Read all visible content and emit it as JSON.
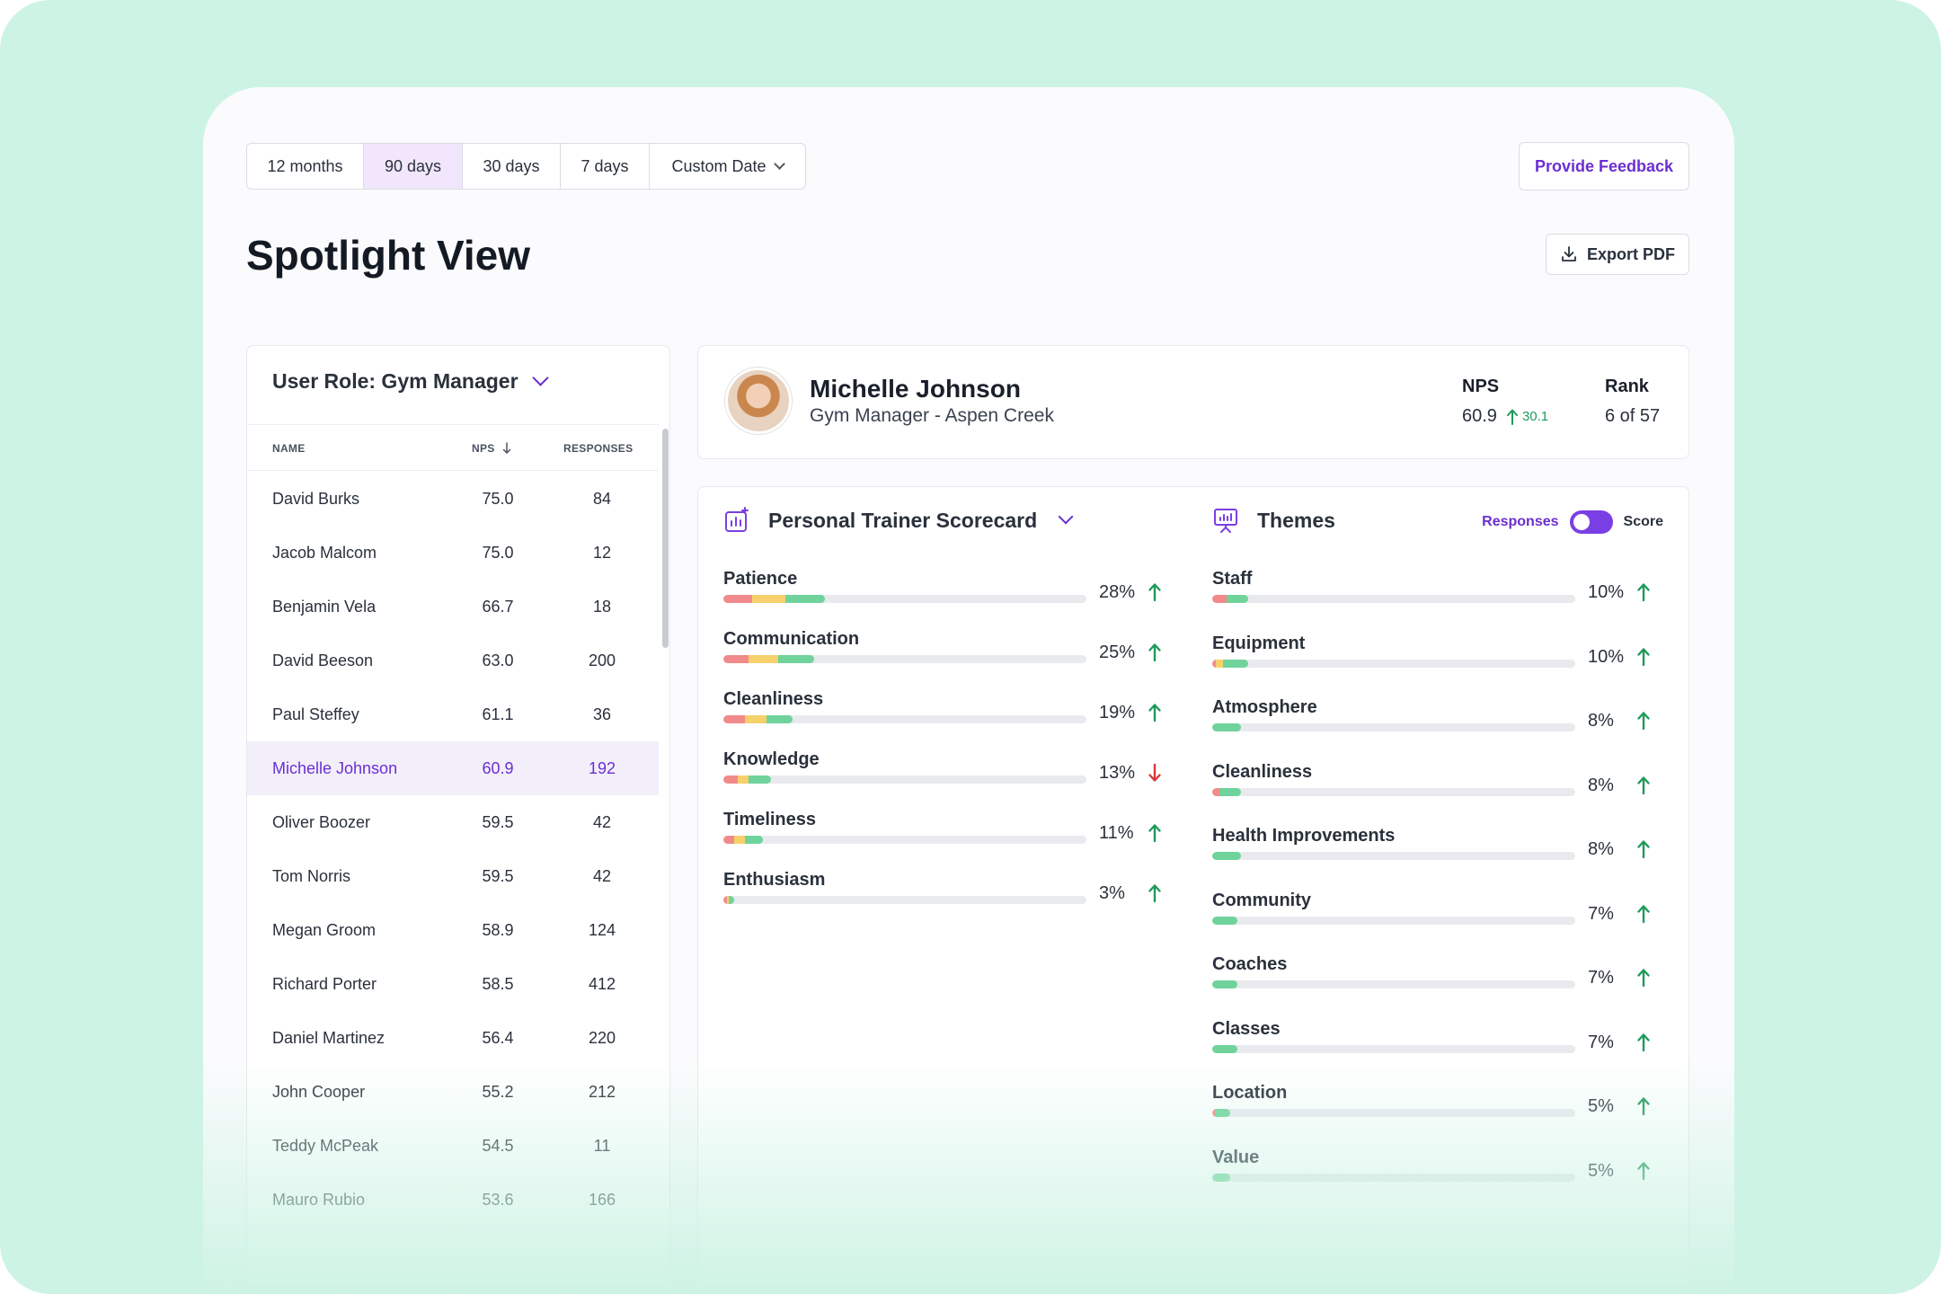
{
  "date_range": {
    "options": [
      "12 months",
      "90 days",
      "30 days",
      "7 days",
      "Custom Date"
    ],
    "selected": "90 days"
  },
  "actions": {
    "feedback_label": "Provide Feedback",
    "export_label": "Export PDF"
  },
  "page": {
    "title": "Spotlight View"
  },
  "role_filter": {
    "label": "User Role: Gym Manager"
  },
  "table": {
    "headers": {
      "name": "NAME",
      "nps": "NPS",
      "responses": "RESPONSES"
    },
    "rows": [
      {
        "name": "David Burks",
        "nps": "75.0",
        "responses": "84"
      },
      {
        "name": "Jacob Malcom",
        "nps": "75.0",
        "responses": "12"
      },
      {
        "name": "Benjamin Vela",
        "nps": "66.7",
        "responses": "18"
      },
      {
        "name": "David Beeson",
        "nps": "63.0",
        "responses": "200"
      },
      {
        "name": "Paul Steffey",
        "nps": "61.1",
        "responses": "36"
      },
      {
        "name": "Michelle Johnson",
        "nps": "60.9",
        "responses": "192",
        "selected": true
      },
      {
        "name": "Oliver Boozer",
        "nps": "59.5",
        "responses": "42"
      },
      {
        "name": "Tom Norris",
        "nps": "59.5",
        "responses": "42"
      },
      {
        "name": "Megan Groom",
        "nps": "58.9",
        "responses": "124"
      },
      {
        "name": "Richard Porter",
        "nps": "58.5",
        "responses": "412"
      },
      {
        "name": "Daniel Martinez",
        "nps": "56.4",
        "responses": "220"
      },
      {
        "name": "John Cooper",
        "nps": "55.2",
        "responses": "212"
      },
      {
        "name": "Teddy McPeak",
        "nps": "54.5",
        "responses": "11"
      },
      {
        "name": "Mauro Rubio",
        "nps": "53.6",
        "responses": "166"
      }
    ]
  },
  "profile": {
    "name": "Michelle Johnson",
    "role": "Gym Manager - Aspen Creek",
    "nps_label": "NPS",
    "nps_value": "60.9",
    "nps_delta": "30.1",
    "rank_label": "Rank",
    "rank_value": "6 of 57"
  },
  "scorecard": {
    "title": "Personal Trainer Scorecard",
    "items": [
      {
        "label": "Patience",
        "pct": "28%",
        "trend": "up",
        "segments": [
          0.08,
          0.09,
          0.11
        ]
      },
      {
        "label": "Communication",
        "pct": "25%",
        "trend": "up",
        "segments": [
          0.07,
          0.08,
          0.1
        ]
      },
      {
        "label": "Cleanliness",
        "pct": "19%",
        "trend": "up",
        "segments": [
          0.06,
          0.06,
          0.07
        ]
      },
      {
        "label": "Knowledge",
        "pct": "13%",
        "trend": "down",
        "segments": [
          0.04,
          0.03,
          0.06
        ]
      },
      {
        "label": "Timeliness",
        "pct": "11%",
        "trend": "up",
        "segments": [
          0.03,
          0.03,
          0.05
        ]
      },
      {
        "label": "Enthusiasm",
        "pct": "3%",
        "trend": "up",
        "segments": [
          0.01,
          0.005,
          0.015
        ]
      }
    ]
  },
  "themes": {
    "title": "Themes",
    "toggle_left": "Responses",
    "toggle_right": "Score",
    "items": [
      {
        "label": "Staff",
        "pct": "10%",
        "trend": "up",
        "segments": [
          0.04,
          0.0,
          0.06
        ]
      },
      {
        "label": "Equipment",
        "pct": "10%",
        "trend": "up",
        "segments": [
          0.01,
          0.02,
          0.07
        ]
      },
      {
        "label": "Atmosphere",
        "pct": "8%",
        "trend": "up",
        "segments": [
          0.0,
          0.0,
          0.08
        ]
      },
      {
        "label": "Cleanliness",
        "pct": "8%",
        "trend": "up",
        "segments": [
          0.02,
          0.0,
          0.06
        ]
      },
      {
        "label": "Health Improvements",
        "pct": "8%",
        "trend": "up",
        "segments": [
          0.0,
          0.0,
          0.08
        ]
      },
      {
        "label": "Community",
        "pct": "7%",
        "trend": "up",
        "segments": [
          0.0,
          0.0,
          0.07
        ]
      },
      {
        "label": "Coaches",
        "pct": "7%",
        "trend": "up",
        "segments": [
          0.0,
          0.0,
          0.07
        ]
      },
      {
        "label": "Classes",
        "pct": "7%",
        "trend": "up",
        "segments": [
          0.0,
          0.0,
          0.07
        ]
      },
      {
        "label": "Location",
        "pct": "5%",
        "trend": "up",
        "segments": [
          0.01,
          0.0,
          0.04
        ]
      },
      {
        "label": "Value",
        "pct": "5%",
        "trend": "up",
        "segments": [
          0.0,
          0.0,
          0.05
        ]
      }
    ]
  },
  "colors": {
    "accent": "#6b2fd0",
    "background": "#cdf3e4",
    "trend_up": "#1e9a5a",
    "trend_down": "#d63a3a",
    "bar_red": "#f18a8a",
    "bar_yellow": "#f6d16b",
    "bar_green": "#6fd39b"
  }
}
